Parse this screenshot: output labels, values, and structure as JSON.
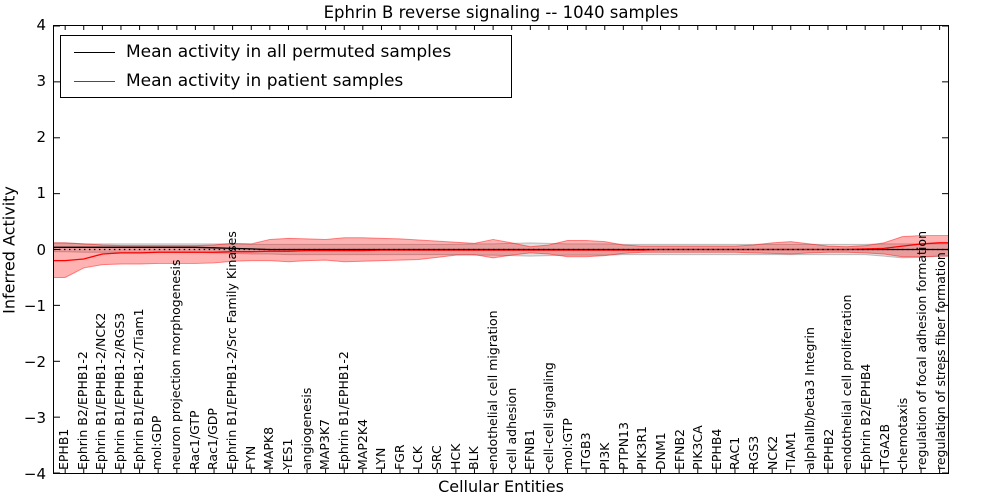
{
  "title": "Ephrin B reverse signaling -- 1040 samples",
  "legend": {
    "position": "upper left",
    "entries": [
      {
        "label": "Mean activity in all permuted samples",
        "color": "#000000"
      },
      {
        "label": "Mean activity in patient samples",
        "color": "#ff0000"
      }
    ]
  },
  "chart_data": {
    "type": "line",
    "title": "Ephrin B reverse signaling -- 1040 samples",
    "xlabel": "Cellular Entities",
    "ylabel": "Inferred Activity",
    "ylim": [
      -4,
      4
    ],
    "xlim": [
      -0.6,
      47.45
    ],
    "yticks": [
      4,
      3,
      2,
      1,
      0,
      -1,
      -2,
      -3,
      -4
    ],
    "grid": false,
    "zero_line": {
      "y": 0,
      "style": "dotted",
      "color": "#000000"
    },
    "categories": [
      "EPHB1",
      "Ephrin B2/EPHB1-2",
      "Ephrin B1/EPHB1-2/NCK2",
      "Ephrin B1/EPHB1-2/RGS3",
      "Ephrin B1/EPHB1-2/Tiam1",
      "mol:GDP",
      "neuron projection morphogenesis",
      "Rac1/GTP",
      "Rac1/GDP",
      "Ephrin B1/EPHB1-2/Src Family Kinases",
      "FYN",
      "MAPK8",
      "YES1",
      "angiogenesis",
      "MAP3K7",
      "Ephrin B1/EPHB1-2",
      "MAP2K4",
      "LYN",
      "FGR",
      "LCK",
      "SRC",
      "HCK",
      "BLK",
      "endothelial cell migration",
      "cell adhesion",
      "EFNB1",
      "cell-cell signaling",
      "mol:GTP",
      "ITGB3",
      "PI3K",
      "PTPN13",
      "PIK3R1",
      "DNM1",
      "EFNB2",
      "PIK3CA",
      "EPHB4",
      "RAC1",
      "RGS3",
      "NCK2",
      "TIAM1",
      "alphaIIb/beta3 Integrin",
      "EPHB2",
      "endothelial cell proliferation",
      "Ephrin B2/EPHB4",
      "ITGA2B",
      "chemotaxis",
      "regulation of focal adhesion formation",
      "regulation of stress fiber formation"
    ],
    "series": [
      {
        "name": "Mean activity in all permuted samples",
        "color": "#000000",
        "band_color": "#000000",
        "band_opacity": 0.12,
        "edge_opacity": 0.22,
        "values": [
          0.04,
          0.04,
          0.04,
          0.04,
          0.04,
          0.04,
          0.04,
          0.04,
          0.03,
          0.02,
          0.01,
          0,
          0,
          0,
          0,
          0,
          0,
          0,
          0,
          0,
          0,
          0,
          0,
          0,
          0,
          0,
          0,
          0,
          0,
          0,
          0,
          0,
          0,
          0,
          0,
          0,
          0,
          0,
          0,
          0,
          0,
          0,
          0,
          0,
          0,
          0,
          0,
          0
        ],
        "band_upper": [
          0.12,
          0.1,
          0.1,
          0.1,
          0.1,
          0.1,
          0.1,
          0.1,
          0.1,
          0.1,
          0.09,
          0.09,
          0.09,
          0.09,
          0.09,
          0.09,
          0.09,
          0.09,
          0.09,
          0.09,
          0.09,
          0.09,
          0.1,
          0.1,
          0.11,
          0.12,
          0.11,
          0.1,
          0.1,
          0.1,
          0.09,
          0.09,
          0.09,
          0.09,
          0.09,
          0.09,
          0.09,
          0.09,
          0.09,
          0.09,
          0.09,
          0.09,
          0.09,
          0.09,
          0.1,
          0.1,
          0.1,
          0.1
        ],
        "band_lower": [
          -0.04,
          -0.05,
          -0.05,
          -0.05,
          -0.05,
          -0.05,
          -0.05,
          -0.05,
          -0.06,
          -0.07,
          -0.08,
          -0.08,
          -0.09,
          -0.09,
          -0.09,
          -0.09,
          -0.09,
          -0.09,
          -0.09,
          -0.09,
          -0.09,
          -0.09,
          -0.1,
          -0.1,
          -0.11,
          -0.12,
          -0.11,
          -0.1,
          -0.1,
          -0.1,
          -0.09,
          -0.09,
          -0.09,
          -0.09,
          -0.09,
          -0.09,
          -0.09,
          -0.09,
          -0.09,
          -0.09,
          -0.09,
          -0.09,
          -0.09,
          -0.09,
          -0.12,
          -0.15,
          -0.14,
          -0.12
        ]
      },
      {
        "name": "Mean activity in patient samples",
        "color": "#ff0000",
        "band_color": "#ff0000",
        "band_opacity": 0.3,
        "edge_opacity": 0.45,
        "values": [
          -0.2,
          -0.17,
          -0.08,
          -0.06,
          -0.06,
          -0.05,
          -0.05,
          -0.05,
          -0.05,
          -0.04,
          -0.04,
          -0.03,
          -0.03,
          -0.02,
          -0.02,
          -0.02,
          -0.02,
          -0.01,
          -0.01,
          -0.01,
          -0.01,
          -0.01,
          -0.01,
          -0.01,
          -0.01,
          -0.01,
          -0.01,
          -0.01,
          -0.01,
          -0.01,
          -0.01,
          -0.01,
          0,
          0,
          0,
          0,
          0,
          0,
          0,
          0,
          0,
          0,
          0,
          0.01,
          0.02,
          0.06,
          0.1,
          0.12
        ],
        "band_upper": [
          0.12,
          0.1,
          0.08,
          0.07,
          0.07,
          0.07,
          0.07,
          0.07,
          0.08,
          0.11,
          0.1,
          0.18,
          0.2,
          0.19,
          0.18,
          0.21,
          0.21,
          0.2,
          0.19,
          0.17,
          0.15,
          0.13,
          0.11,
          0.18,
          0.12,
          0.05,
          0.08,
          0.16,
          0.16,
          0.14,
          0.08,
          0.06,
          0.06,
          0.06,
          0.06,
          0.06,
          0.06,
          0.08,
          0.12,
          0.14,
          0.1,
          0.06,
          0.05,
          0.07,
          0.12,
          0.23,
          0.25,
          0.25
        ],
        "band_lower": [
          -0.5,
          -0.33,
          -0.27,
          -0.26,
          -0.26,
          -0.25,
          -0.25,
          -0.25,
          -0.24,
          -0.21,
          -0.2,
          -0.2,
          -0.22,
          -0.2,
          -0.19,
          -0.22,
          -0.21,
          -0.2,
          -0.19,
          -0.18,
          -0.14,
          -0.1,
          -0.09,
          -0.15,
          -0.1,
          -0.06,
          -0.08,
          -0.13,
          -0.13,
          -0.11,
          -0.07,
          -0.05,
          -0.05,
          -0.05,
          -0.05,
          -0.05,
          -0.05,
          -0.06,
          -0.07,
          -0.08,
          -0.06,
          -0.05,
          -0.05,
          -0.06,
          -0.08,
          -0.13,
          -0.13,
          -0.12
        ]
      }
    ]
  }
}
